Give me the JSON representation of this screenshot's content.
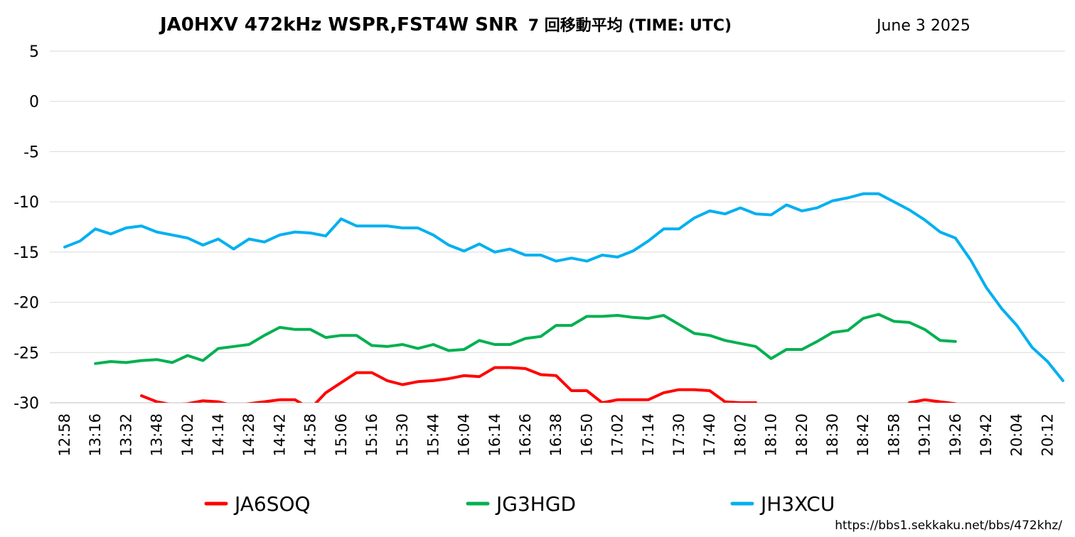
{
  "title": "JA0HXV 472kHz WSPR,FST4W SNR",
  "title_sub": "7 回移動平均 (TIME: UTC)",
  "date": "June 3 2025",
  "url": "https://bbs1.sekkaku.net/bbs/472khz/",
  "chart_data": {
    "type": "line",
    "title": "JA0HXV 472kHz WSPR,FST4W SNR 7 回移動平均 (TIME: UTC)",
    "xlabel": "",
    "ylabel": "",
    "ylim": [
      -30,
      5
    ],
    "yticks": [
      5,
      0,
      -5,
      -10,
      -15,
      -20,
      -25,
      -30
    ],
    "grid": true,
    "legend_position": "bottom",
    "x_tick_labels": [
      "12:58",
      "13:16",
      "13:32",
      "13:48",
      "14:02",
      "14:14",
      "14:28",
      "14:42",
      "14:58",
      "15:06",
      "15:16",
      "15:30",
      "15:44",
      "16:04",
      "16:14",
      "16:26",
      "16:38",
      "16:50",
      "17:02",
      "17:14",
      "17:30",
      "17:40",
      "18:02",
      "18:10",
      "18:20",
      "18:30",
      "18:42",
      "18:58",
      "19:12",
      "19:26",
      "19:42",
      "20:04",
      "20:12"
    ],
    "n_points": 67,
    "series": [
      {
        "name": "JA6SOQ",
        "color": "#ff0000",
        "values": [
          null,
          null,
          null,
          null,
          null,
          -29.3,
          -29.9,
          -30.2,
          -30.1,
          -29.8,
          -29.9,
          -30.3,
          -30.1,
          -29.9,
          -29.7,
          -29.7,
          -30.6,
          -29.0,
          -28.0,
          -27.0,
          -27.0,
          -27.8,
          -28.2,
          -27.9,
          -27.8,
          -27.6,
          -27.3,
          -27.4,
          -26.5,
          -26.5,
          -26.6,
          -27.2,
          -27.3,
          -28.8,
          -28.8,
          -30.0,
          -29.7,
          -29.7,
          -29.7,
          -29.0,
          -28.7,
          -28.7,
          -28.8,
          -29.9,
          -30.0,
          -30.0,
          null,
          null,
          null,
          null,
          null,
          null,
          null,
          null,
          null,
          -30.0,
          -29.7,
          -29.9,
          -30.1,
          null,
          null,
          null,
          null,
          null,
          null,
          null,
          null
        ]
      },
      {
        "name": "JG3HGD",
        "color": "#00b050",
        "values": [
          null,
          null,
          -26.1,
          -25.9,
          -26.0,
          -25.8,
          -25.7,
          -26.0,
          -25.3,
          -25.8,
          -24.6,
          -24.4,
          -24.2,
          -23.3,
          -22.5,
          -22.7,
          -22.7,
          -23.5,
          -23.3,
          -23.3,
          -24.3,
          -24.4,
          -24.2,
          -24.6,
          -24.2,
          -24.8,
          -24.7,
          -23.8,
          -24.2,
          -24.2,
          -23.6,
          -23.4,
          -22.3,
          -22.3,
          -21.4,
          -21.4,
          -21.3,
          -21.5,
          -21.6,
          -21.3,
          -22.2,
          -23.1,
          -23.3,
          -23.8,
          -24.1,
          -24.4,
          -25.6,
          -24.7,
          -24.7,
          -23.9,
          -23.0,
          -22.8,
          -21.6,
          -21.2,
          -21.9,
          -22.0,
          -22.7,
          -23.8,
          -23.9,
          null,
          null,
          null,
          null,
          null,
          null,
          null,
          null
        ]
      },
      {
        "name": "JH3XCU",
        "color": "#00b0f0",
        "values": [
          -14.5,
          -13.9,
          -12.7,
          -13.2,
          -12.6,
          -12.4,
          -13.0,
          -13.3,
          -13.6,
          -14.3,
          -13.7,
          -14.7,
          -13.7,
          -14.0,
          -13.3,
          -13.0,
          -13.1,
          -13.4,
          -11.7,
          -12.4,
          -12.4,
          -12.4,
          -12.6,
          -12.6,
          -13.3,
          -14.3,
          -14.9,
          -14.2,
          -15.0,
          -14.7,
          -15.3,
          -15.3,
          -15.9,
          -15.6,
          -15.9,
          -15.3,
          -15.5,
          -14.9,
          -13.9,
          -12.7,
          -12.7,
          -11.6,
          -10.9,
          -11.2,
          -10.6,
          -11.2,
          -11.3,
          -10.3,
          -10.9,
          -10.6,
          -9.9,
          -9.6,
          -9.2,
          -9.2,
          -10.0,
          -10.8,
          -11.8,
          -13.0,
          -13.6,
          -15.8,
          -18.5,
          -20.6,
          -22.3,
          -24.5,
          -25.9,
          -27.8,
          null
        ]
      }
    ]
  }
}
